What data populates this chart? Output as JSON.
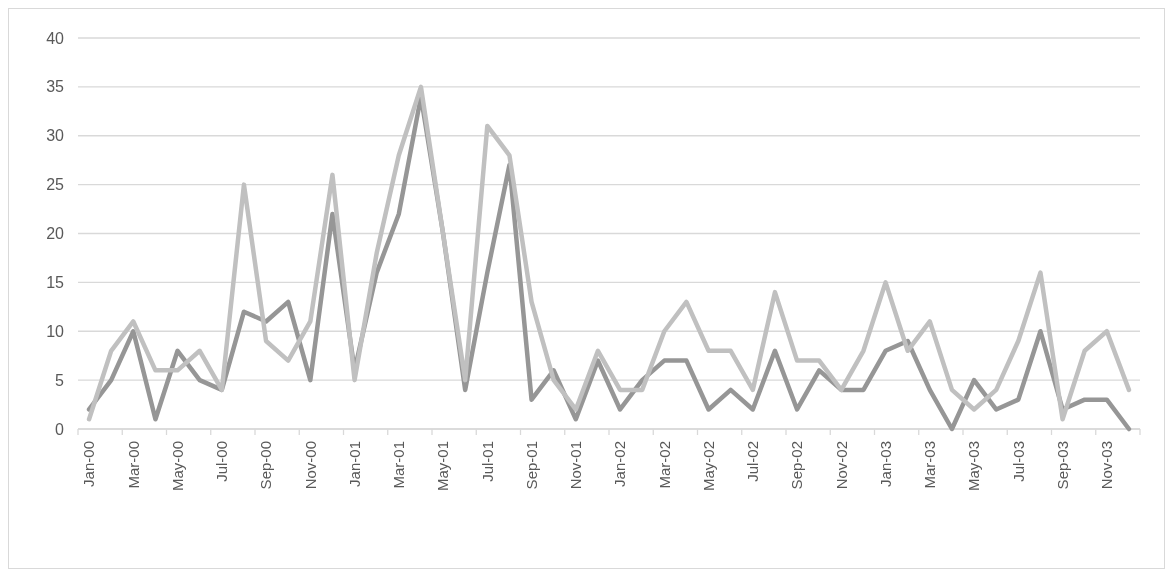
{
  "chart_data": {
    "type": "line",
    "categories": [
      "Jan-00",
      null,
      "Mar-00",
      null,
      "May-00",
      null,
      "Jul-00",
      null,
      "Sep-00",
      null,
      "Nov-00",
      null,
      "Jan-01",
      null,
      "Mar-01",
      null,
      "May-01",
      null,
      "Jul-01",
      null,
      "Sep-01",
      null,
      "Nov-01",
      null,
      "Jan-02",
      null,
      "Mar-02",
      null,
      "May-02",
      null,
      "Jul-02",
      null,
      "Sep-02",
      null,
      "Nov-02",
      null,
      "Jan-03",
      null,
      "Mar-03",
      null,
      "May-03",
      null,
      "Jul-03",
      null,
      "Sep-03",
      null,
      "Nov-03",
      null
    ],
    "series": [
      {
        "color": "#969696",
        "values": [
          2,
          5,
          10,
          1,
          8,
          5,
          4,
          12,
          11,
          13,
          5,
          22,
          6,
          16,
          22,
          34,
          20,
          4,
          16,
          27,
          3,
          6,
          1,
          7,
          2,
          5,
          7,
          7,
          2,
          4,
          2,
          8,
          2,
          6,
          4,
          4,
          8,
          9,
          4,
          0,
          5,
          2,
          3,
          10,
          2,
          3,
          3,
          0
        ]
      },
      {
        "color": "#c0c0c0",
        "values": [
          1,
          8,
          11,
          6,
          6,
          8,
          4,
          25,
          9,
          7,
          11,
          26,
          5,
          18,
          28,
          35,
          20,
          5,
          31,
          28,
          13,
          5,
          2,
          8,
          4,
          4,
          10,
          13,
          8,
          8,
          4,
          14,
          7,
          7,
          4,
          8,
          15,
          8,
          11,
          4,
          2,
          4,
          9,
          16,
          1,
          8,
          10,
          4
        ]
      }
    ],
    "ylim": [
      0,
      40
    ],
    "yticks": [
      0,
      5,
      10,
      15,
      20,
      25,
      30,
      35,
      40
    ],
    "grid": "y",
    "line_style": "solid",
    "marker": "none"
  }
}
